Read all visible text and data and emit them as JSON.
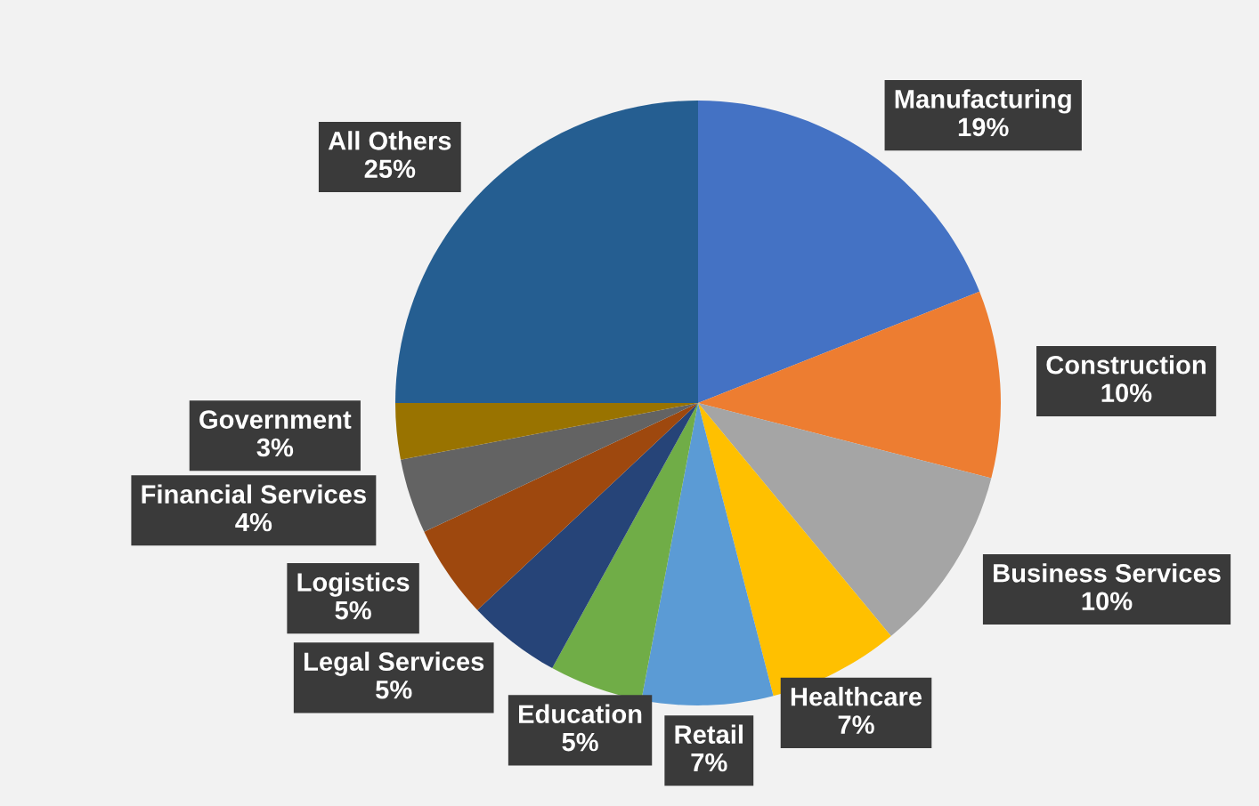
{
  "chart_data": {
    "type": "pie",
    "categories": [
      "Manufacturing",
      "Construction",
      "Business Services",
      "Healthcare",
      "Retail",
      "Education",
      "Legal Services",
      "Logistics",
      "Financial Services",
      "Government",
      "All Others"
    ],
    "values": [
      19,
      10,
      10,
      7,
      7,
      5,
      5,
      5,
      4,
      3,
      25
    ],
    "value_labels": [
      "19%",
      "10%",
      "10%",
      "7%",
      "7%",
      "5%",
      "5%",
      "5%",
      "4%",
      "3%",
      "25%"
    ],
    "colors": [
      "#4472c4",
      "#ed7d31",
      "#a5a5a5",
      "#ffc000",
      "#5b9bd5",
      "#70ad47",
      "#264478",
      "#9e480e",
      "#636363",
      "#997300",
      "#255e91"
    ]
  }
}
